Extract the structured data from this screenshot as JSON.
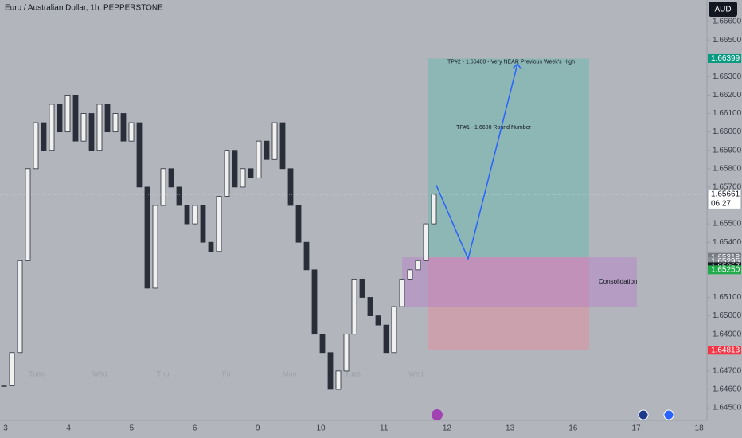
{
  "chart_data": {
    "type": "candlestick",
    "title": "Euro / Australian Dollar, 1h, PEPPERSTONE",
    "currency": "AUD",
    "closes": [
      1.6462,
      1.648,
      1.653,
      1.658,
      1.6605,
      1.659,
      1.6615,
      1.66,
      1.662,
      1.6595,
      1.661,
      1.659,
      1.6615,
      1.66,
      1.661,
      1.6595,
      1.6605,
      1.657,
      1.6515,
      1.656,
      1.658,
      1.657,
      1.656,
      1.655,
      1.656,
      1.654,
      1.6535,
      1.6565,
      1.659,
      1.657,
      1.658,
      1.6575,
      1.6595,
      1.6585,
      1.6605,
      1.658,
      1.656,
      1.654,
      1.6525,
      1.649,
      1.648,
      1.646,
      1.647,
      1.649,
      1.652,
      1.651,
      1.65,
      1.6495,
      1.648,
      1.6505,
      1.652,
      1.6525,
      1.653,
      1.655,
      1.65661
    ],
    "ylim": [
      1.64431,
      1.66717
    ],
    "yticks": [
      {
        "value": 1.666,
        "label": "1.66600"
      },
      {
        "value": 1.665,
        "label": "1.66500"
      },
      {
        "value": 1.663,
        "label": "1.66300"
      },
      {
        "value": 1.662,
        "label": "1.66200"
      },
      {
        "value": 1.661,
        "label": "1.66100"
      },
      {
        "value": 1.66,
        "label": "1.66000"
      },
      {
        "value": 1.659,
        "label": "1.65900"
      },
      {
        "value": 1.658,
        "label": "1.65800"
      },
      {
        "value": 1.657,
        "label": "1.65700"
      },
      {
        "value": 1.655,
        "label": "1.65500"
      },
      {
        "value": 1.654,
        "label": "1.65400"
      },
      {
        "value": 1.651,
        "label": "1.65100"
      },
      {
        "value": 1.65,
        "label": "1.65000"
      },
      {
        "value": 1.649,
        "label": "1.64900"
      },
      {
        "value": 1.647,
        "label": "1.64700"
      },
      {
        "value": 1.646,
        "label": "1.64600"
      },
      {
        "value": 1.645,
        "label": "1.64500"
      }
    ],
    "x_labels": [
      "3",
      "4",
      "5",
      "6",
      "9",
      "10",
      "11",
      "12",
      "13",
      "16",
      "17",
      "18"
    ],
    "day_labels": [
      "Tues",
      "Wed",
      "Thu",
      "Fri",
      "Mon",
      "Tues",
      "Wed"
    ],
    "position": {
      "target": 1.66399,
      "entry": 1.65318,
      "stop": 1.64813
    },
    "consolidation": {
      "label": "Consolidation",
      "top": 1.65318,
      "bottom": 1.6505
    },
    "path_prices": [
      1.6571,
      1.6531,
      1.6637
    ],
    "annotations": [
      "TP#2 - 1.66400 - Very NEAR Previous Week's High",
      "TP#1 - 1.6600 Round Number"
    ],
    "price_tags": [
      {
        "value": 1.66399,
        "label": "1.66399",
        "color": "#089981"
      },
      {
        "value": 1.65661,
        "label": "1.65661",
        "color": "#ffffff",
        "countdown": "06:27"
      },
      {
        "value": 1.65318,
        "label": "1.65318",
        "color": "#787b86"
      },
      {
        "value": 1.65295,
        "label": "1.65295",
        "color": "#8a8d96"
      },
      {
        "value": 1.65267,
        "label": "1.65267",
        "color": "#131722"
      },
      {
        "value": 1.6525,
        "label": "1.65250",
        "color": "#22ab4a"
      },
      {
        "value": 1.64813,
        "label": "1.64813",
        "color": "#f23645"
      }
    ]
  }
}
